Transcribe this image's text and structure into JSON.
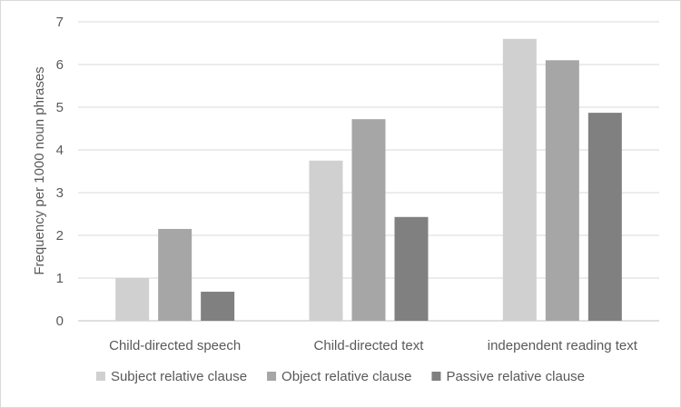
{
  "chart_data": {
    "type": "bar",
    "title": "",
    "xlabel": "",
    "ylabel": "Frequency per 1000 noun phrases",
    "ylim": [
      0,
      7
    ],
    "yticks": [
      "0",
      "1",
      "2",
      "3",
      "4",
      "5",
      "6",
      "7"
    ],
    "grid": true,
    "legend_position": "bottom",
    "categories": [
      "Child-directed speech",
      "Child-directed text",
      "independent reading text"
    ],
    "series": [
      {
        "name": "Subject relative clause",
        "color": "#d0d0d0",
        "values": [
          1.0,
          3.75,
          6.6
        ]
      },
      {
        "name": "Object relative clause",
        "color": "#a6a6a6",
        "values": [
          2.15,
          4.72,
          6.1
        ]
      },
      {
        "name": "Passive relative clause",
        "color": "#808080",
        "values": [
          0.68,
          2.43,
          4.87
        ]
      }
    ]
  }
}
